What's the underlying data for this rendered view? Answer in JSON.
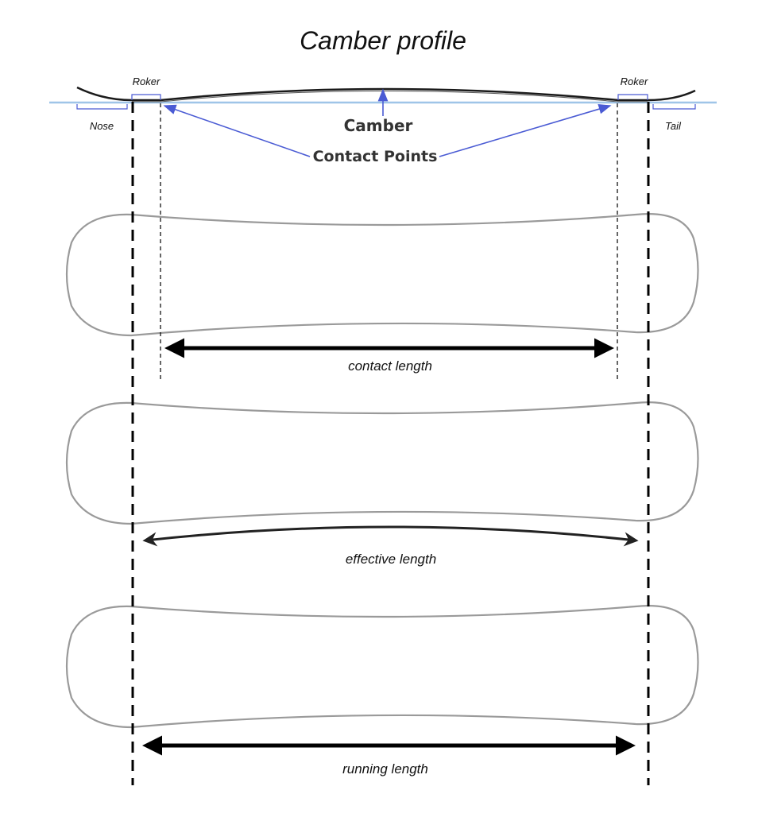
{
  "title": "Camber profile",
  "profile": {
    "left_rocker": "Roker",
    "right_rocker": "Roker",
    "nose": "Nose",
    "tail": "Tail",
    "camber": "Camber",
    "contact_points": "Contact Points"
  },
  "measurements": {
    "contact_length": "contact length",
    "effective_length": "effective length",
    "running_length": "running length"
  },
  "colors": {
    "baseline": "#9fc5e8",
    "annotation": "#4a5bd4",
    "board_outline": "#9a9a9a",
    "profile_curve": "#1a1a1a",
    "measure_arrow": "#000000"
  }
}
